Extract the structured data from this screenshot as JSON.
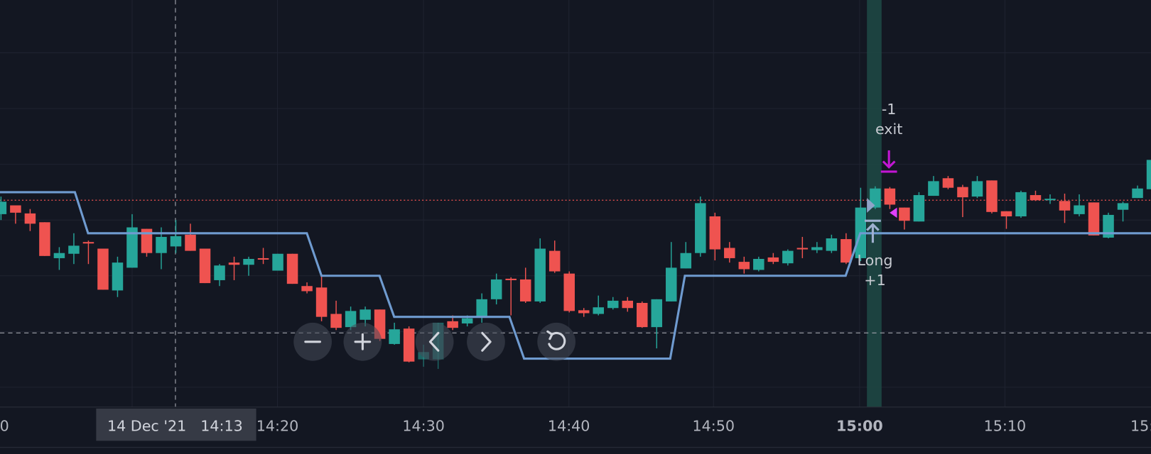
{
  "time_axis": {
    "labels": [
      "0",
      "14:20",
      "14:30",
      "14:40",
      "14:50",
      "15:00",
      "15:10",
      "15:"
    ]
  },
  "crosshair_label": {
    "date": "14 Dec '21",
    "time": "14:13"
  },
  "trades": [
    {
      "top": "-1",
      "bottom": "exit"
    },
    {
      "top": "Long",
      "bottom": "+1"
    }
  ]
}
